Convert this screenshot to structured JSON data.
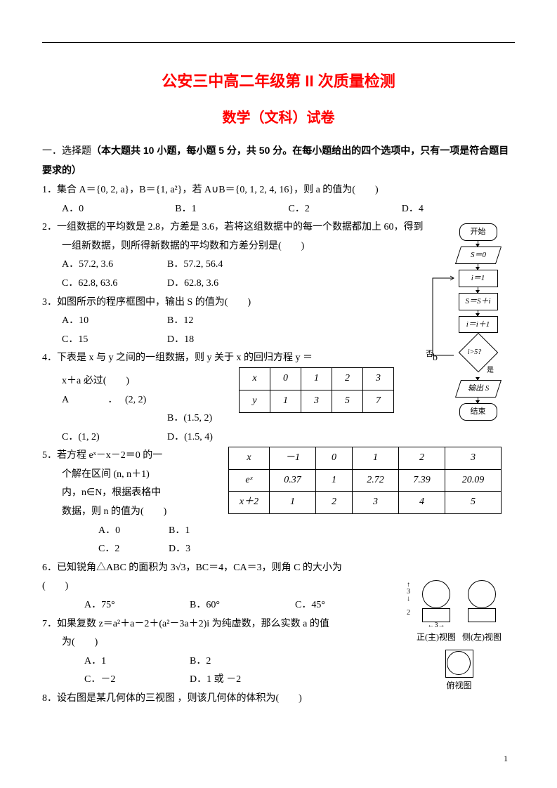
{
  "page": {
    "title1": "公安三中高二年级第 II 次质量检测",
    "title2": "数学（文科）试卷",
    "pagenum": "1"
  },
  "section": {
    "head_a": "一．选择题",
    "head_b": "（本大题共 10 小题，每小题 5 分，共 50 分。在每小题给出的四个选项中，只有一项是符合题目要求的）"
  },
  "q1": {
    "text": "1．集合 A＝{0, 2,  a}，B＝{1,  a²}，若 A∪B＝{0, 1, 2, 4, 16}，则 a 的值为(　　)",
    "A": "A．0",
    "B": "B．1",
    "C": "C．2",
    "D": "D．4"
  },
  "q2": {
    "l1": "2．一组数据的平均数是 2.8，方差是 3.6，若将这组数据中的每一个数据都加上 60，得到",
    "l2": "一组新数据，则所得新数据的平均数和方差分别是(　　)",
    "A": "A．57.2, 3.6",
    "B": "B．57.2, 56.4",
    "C": "C．62.8, 63.6",
    "D": "D．62.8, 3.6"
  },
  "q3": {
    "text": "3．如图所示的程序框图中，输出 S 的值为(　　)",
    "A": "A．10",
    "B": "B．12",
    "C": "C．15",
    "D": "D．18"
  },
  "q4": {
    "l1": "4．下表是 x 与 y 之间的一组数据，则 y 关于 x 的回归方程  y ＝",
    "tail": "b",
    "l2": "x＋a  必过(　　)",
    "A": "A　　　　．",
    "Aval": "(2, 2)",
    "B": "B．(1.5, 2)",
    "C": "C．(1, 2)",
    "D": "D．(1.5, 4)",
    "table": {
      "r1": [
        "x",
        "0",
        "1",
        "2",
        "3"
      ],
      "r2": [
        "y",
        "1",
        "3",
        "5",
        "7"
      ]
    }
  },
  "q5": {
    "l1": "5．若方程 eˣ－x－2＝0 的一",
    "l2": "个解在区间 (n,  n＋1)",
    "l3": "内，n∈N，根据表格中",
    "l4": "数据，则 n 的值为(　　)",
    "A": "A．0",
    "B": "B．1",
    "C": "C．2",
    "D": "D．3",
    "table": {
      "r1": [
        "x",
        "－1",
        "0",
        "1",
        "2",
        "3"
      ],
      "r2": [
        "eˣ",
        "0.37",
        "1",
        "2.72",
        "7.39",
        "20.09"
      ],
      "r3": [
        "x＋2",
        "1",
        "2",
        "3",
        "4",
        "5"
      ],
      "widths": [
        58,
        66,
        52,
        66,
        66,
        80
      ]
    }
  },
  "q6": {
    "l1": "6．已知锐角△ABC 的面积为 3√3，BC＝4，CA＝3，则角 C 的大小为",
    "l2": "(　　)",
    "A": "A．75°",
    "B": "B．60°",
    "C": "C．45°"
  },
  "q7": {
    "l1": "7．如果复数 z＝a²＋a－2＋(a²－3a＋2)i 为纯虚数，那么实数 a 的值",
    "l2": "为(　　)",
    "A": "A．1",
    "B": "B．2",
    "C": "C．－2",
    "D": "D．1 或 －2"
  },
  "q8": {
    "text": "8．设右图是某几何体的三视图 ，则该几何体的体积为(　　)"
  },
  "flowchart": {
    "start": "开始",
    "s0": "S＝0",
    "i1": "i＝1",
    "ss": "S＝S＋i",
    "ii": "i＝i＋1",
    "cond": "i>5?",
    "no": "否",
    "yes": "是",
    "out": "输出 S",
    "end": "结束"
  },
  "views": {
    "front": "正(主)视图",
    "side": "侧(左)视图",
    "top": "俯视图",
    "dim3a": "3",
    "dim2": "2",
    "dim3b": "3"
  }
}
